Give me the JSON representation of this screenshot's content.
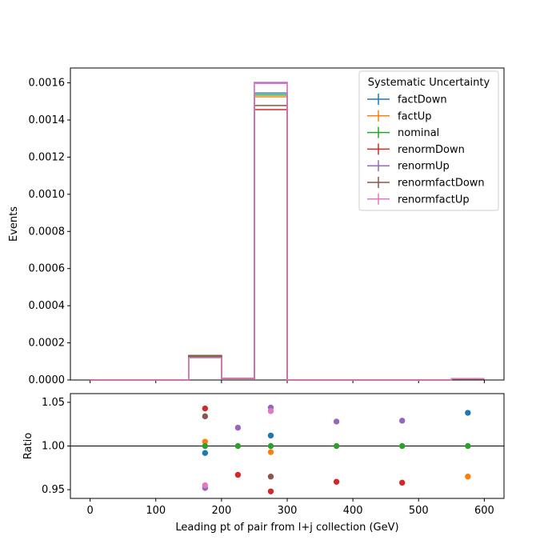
{
  "chart_data": {
    "type": "step-histogram-with-ratio",
    "top": {
      "ylabel": "Events",
      "ylim": [
        0,
        0.00168
      ],
      "yticks": [
        "0.0000",
        "0.0002",
        "0.0004",
        "0.0006",
        "0.0008",
        "0.0010",
        "0.0012",
        "0.0014",
        "0.0016"
      ],
      "ytick_values": [
        0,
        0.0002,
        0.0004,
        0.0006,
        0.0008,
        0.001,
        0.0012,
        0.0014,
        0.0016
      ],
      "bin_edges": [
        0,
        50,
        100,
        150,
        200,
        250,
        300,
        350,
        400,
        450,
        500,
        550,
        600
      ],
      "series": [
        {
          "name": "factDown",
          "color": "#1f77b4",
          "values": [
            0,
            0,
            0,
            0.000125,
            8e-06,
            0.001545,
            0,
            0,
            0,
            0,
            0,
            6e-06
          ]
        },
        {
          "name": "factUp",
          "color": "#ff7f0e",
          "values": [
            0,
            0,
            0,
            0.000126,
            8e-06,
            0.001525,
            0,
            0,
            0,
            0,
            0,
            6e-06
          ]
        },
        {
          "name": "nominal",
          "color": "#2ca02c",
          "values": [
            0,
            0,
            0,
            0.000126,
            8e-06,
            0.001535,
            0,
            0,
            0,
            0,
            0,
            6e-06
          ]
        },
        {
          "name": "renormDown",
          "color": "#d62728",
          "values": [
            0,
            0,
            0,
            0.000132,
            8e-06,
            0.001456,
            0,
            0,
            0,
            0,
            0,
            6e-06
          ]
        },
        {
          "name": "renormUp",
          "color": "#9467bd",
          "values": [
            0,
            0,
            0,
            0.00012,
            8e-06,
            0.001602,
            0,
            0,
            0,
            0,
            0,
            6e-06
          ]
        },
        {
          "name": "renormfactDown",
          "color": "#8c564b",
          "values": [
            0,
            0,
            0,
            0.000131,
            8e-06,
            0.001478,
            0,
            0,
            0,
            0,
            0,
            6e-06
          ]
        },
        {
          "name": "renormfactUp",
          "color": "#e377c2",
          "values": [
            0,
            0,
            0,
            0.00012,
            8e-06,
            0.001597,
            0,
            0,
            0,
            0,
            0,
            6e-06
          ]
        }
      ],
      "legend": {
        "title": "Systematic Uncertainty",
        "placement": "top-right"
      }
    },
    "bottom": {
      "ylabel": "Ratio",
      "xlabel": "Leading pt of pair from l+j collection (GeV)",
      "xlim": [
        -30,
        630
      ],
      "ylim": [
        0.94,
        1.06
      ],
      "xticks": [
        "0",
        "100",
        "200",
        "300",
        "400",
        "500",
        "600"
      ],
      "xtick_values": [
        0,
        100,
        200,
        300,
        400,
        500,
        600
      ],
      "yticks": [
        "0.95",
        "1.00",
        "1.05"
      ],
      "ytick_values": [
        0.95,
        1.0,
        1.05
      ],
      "reference_line": 1.0,
      "points": [
        {
          "name": "factDown",
          "color": "#1f77b4",
          "x": [
            175,
            275,
            575
          ],
          "y": [
            0.992,
            1.012,
            1.038
          ]
        },
        {
          "name": "factUp",
          "color": "#ff7f0e",
          "x": [
            175,
            275,
            575
          ],
          "y": [
            1.005,
            0.993,
            0.965
          ]
        },
        {
          "name": "nominal",
          "color": "#2ca02c",
          "x": [
            175,
            225,
            275,
            375,
            475,
            575
          ],
          "y": [
            1.0,
            1.0,
            1.0,
            1.0,
            1.0,
            1.0
          ]
        },
        {
          "name": "renormDown",
          "color": "#d62728",
          "x": [
            175,
            225,
            275,
            375,
            475
          ],
          "y": [
            1.043,
            0.967,
            0.948,
            0.959,
            0.958
          ]
        },
        {
          "name": "renormUp",
          "color": "#9467bd",
          "x": [
            175,
            225,
            275,
            375,
            475
          ],
          "y": [
            0.952,
            1.021,
            1.044,
            1.028,
            1.029
          ]
        },
        {
          "name": "renormfactDown",
          "color": "#8c564b",
          "x": [
            175,
            275
          ],
          "y": [
            1.034,
            0.965
          ]
        },
        {
          "name": "renormfactUp",
          "color": "#e377c2",
          "x": [
            175,
            275
          ],
          "y": [
            0.955,
            1.04
          ]
        }
      ]
    }
  }
}
